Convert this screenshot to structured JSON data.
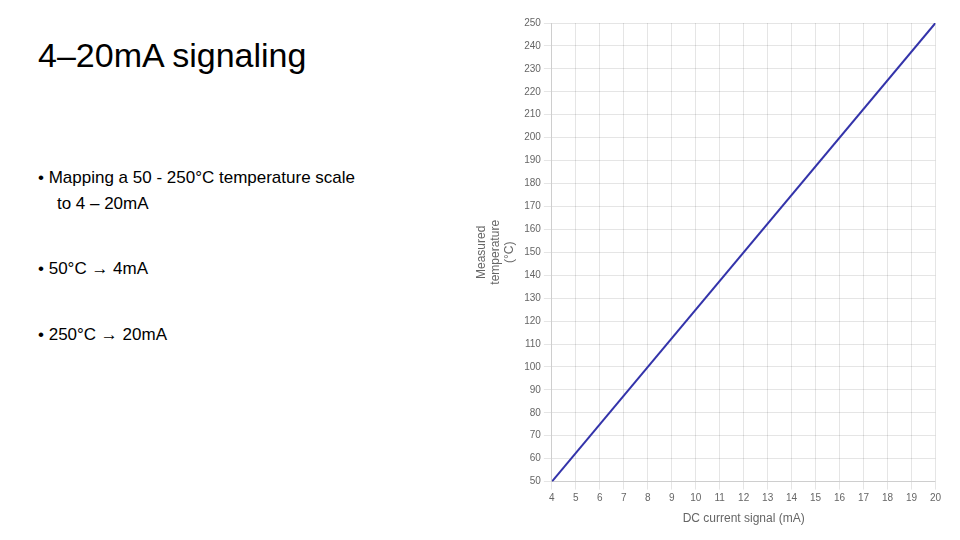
{
  "chart_data": {
    "type": "line",
    "title": "4–20mA signaling",
    "annotations": [
      "• Mapping a 50 - 250°C temperature scale\n    to 4 – 20mA",
      "• 50°C → 4mA",
      "• 250°C → 20mA"
    ],
    "x": [
      4,
      20
    ],
    "values": [
      50,
      250
    ],
    "color": "#3333aa",
    "xlabel": "DC current signal (mA)",
    "ylabel": "Measured\ntemperature\n(°C)",
    "xlim": [
      4,
      20
    ],
    "xticks": [
      4,
      5,
      6,
      7,
      8,
      9,
      10,
      11,
      12,
      13,
      14,
      15,
      16,
      17,
      18,
      19,
      20
    ],
    "ylim": [
      50,
      250
    ],
    "yticks": [
      50,
      60,
      70,
      80,
      90,
      100,
      110,
      120,
      130,
      140,
      150,
      160,
      170,
      180,
      190,
      200,
      210,
      220,
      230,
      240,
      250
    ],
    "grid": true
  }
}
